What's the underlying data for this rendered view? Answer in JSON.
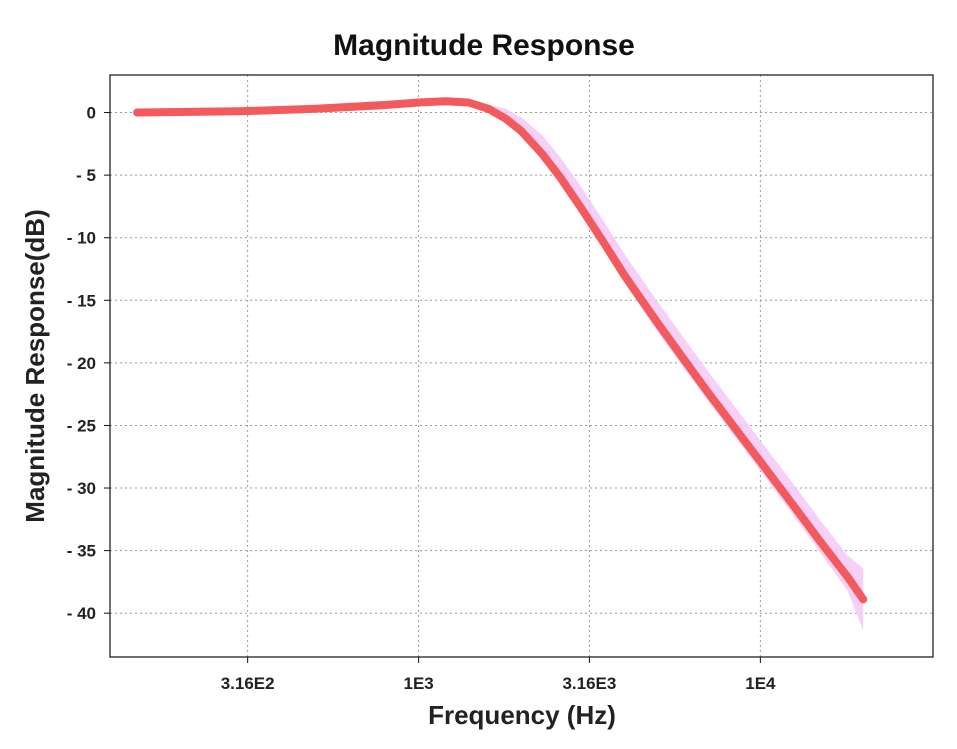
{
  "chart_data": {
    "type": "line",
    "title": "Magnitude Response",
    "xlabel": "Frequency (Hz)",
    "ylabel": "Magnitude Response(dB)",
    "x_scale": "log",
    "xlim": [
      125,
      32000
    ],
    "ylim": [
      -43.5,
      3.0
    ],
    "x_ticks": [
      {
        "value": 316,
        "label": "3.16E2"
      },
      {
        "value": 1000,
        "label": "1E3"
      },
      {
        "value": 3160,
        "label": "3.16E3"
      },
      {
        "value": 10000,
        "label": "1E4"
      }
    ],
    "y_ticks": [
      {
        "value": 0,
        "label": "0"
      },
      {
        "value": -5,
        "label": "- 5"
      },
      {
        "value": -10,
        "label": "- 10"
      },
      {
        "value": -15,
        "label": "- 15"
      },
      {
        "value": -20,
        "label": "- 20"
      },
      {
        "value": -25,
        "label": "- 25"
      },
      {
        "value": -30,
        "label": "- 30"
      },
      {
        "value": -35,
        "label": "- 35"
      },
      {
        "value": -40,
        "label": "- 40"
      }
    ],
    "grid": true,
    "series": [
      {
        "color": "#f25a5e",
        "x": [
          150,
          300,
          500,
          800,
          1000,
          1200,
          1400,
          1600,
          1800,
          2000,
          2300,
          2600,
          3000,
          3500,
          4000,
          5000,
          6000,
          7000,
          8000,
          10000,
          12500,
          15000,
          18000,
          20000
        ],
        "y": [
          0.0,
          0.1,
          0.3,
          0.6,
          0.8,
          0.9,
          0.8,
          0.3,
          -0.5,
          -1.5,
          -3.3,
          -5.2,
          -7.7,
          -10.5,
          -13.0,
          -16.8,
          -19.8,
          -22.3,
          -24.4,
          -27.9,
          -31.4,
          -34.3,
          -37.1,
          -38.9
        ]
      }
    ],
    "band": {
      "color": "#f6c8f7",
      "x": [
        1300,
        1500,
        1800,
        2000,
        2300,
        2600,
        3000,
        3500,
        4000,
        5000,
        6000,
        7000,
        8000,
        10000,
        12500,
        15000,
        18000,
        20000
      ],
      "upper": [
        0.9,
        0.8,
        0.3,
        -0.4,
        -1.8,
        -3.6,
        -6.0,
        -8.8,
        -11.3,
        -15.1,
        -18.1,
        -20.6,
        -22.7,
        -26.2,
        -29.7,
        -32.6,
        -35.4,
        -36.4
      ],
      "lower": [
        0.8,
        0.5,
        -0.6,
        -1.7,
        -3.6,
        -5.6,
        -8.2,
        -11.1,
        -13.6,
        -17.5,
        -20.5,
        -23.0,
        -25.1,
        -28.6,
        -32.2,
        -35.2,
        -38.2,
        -41.4
      ]
    }
  }
}
